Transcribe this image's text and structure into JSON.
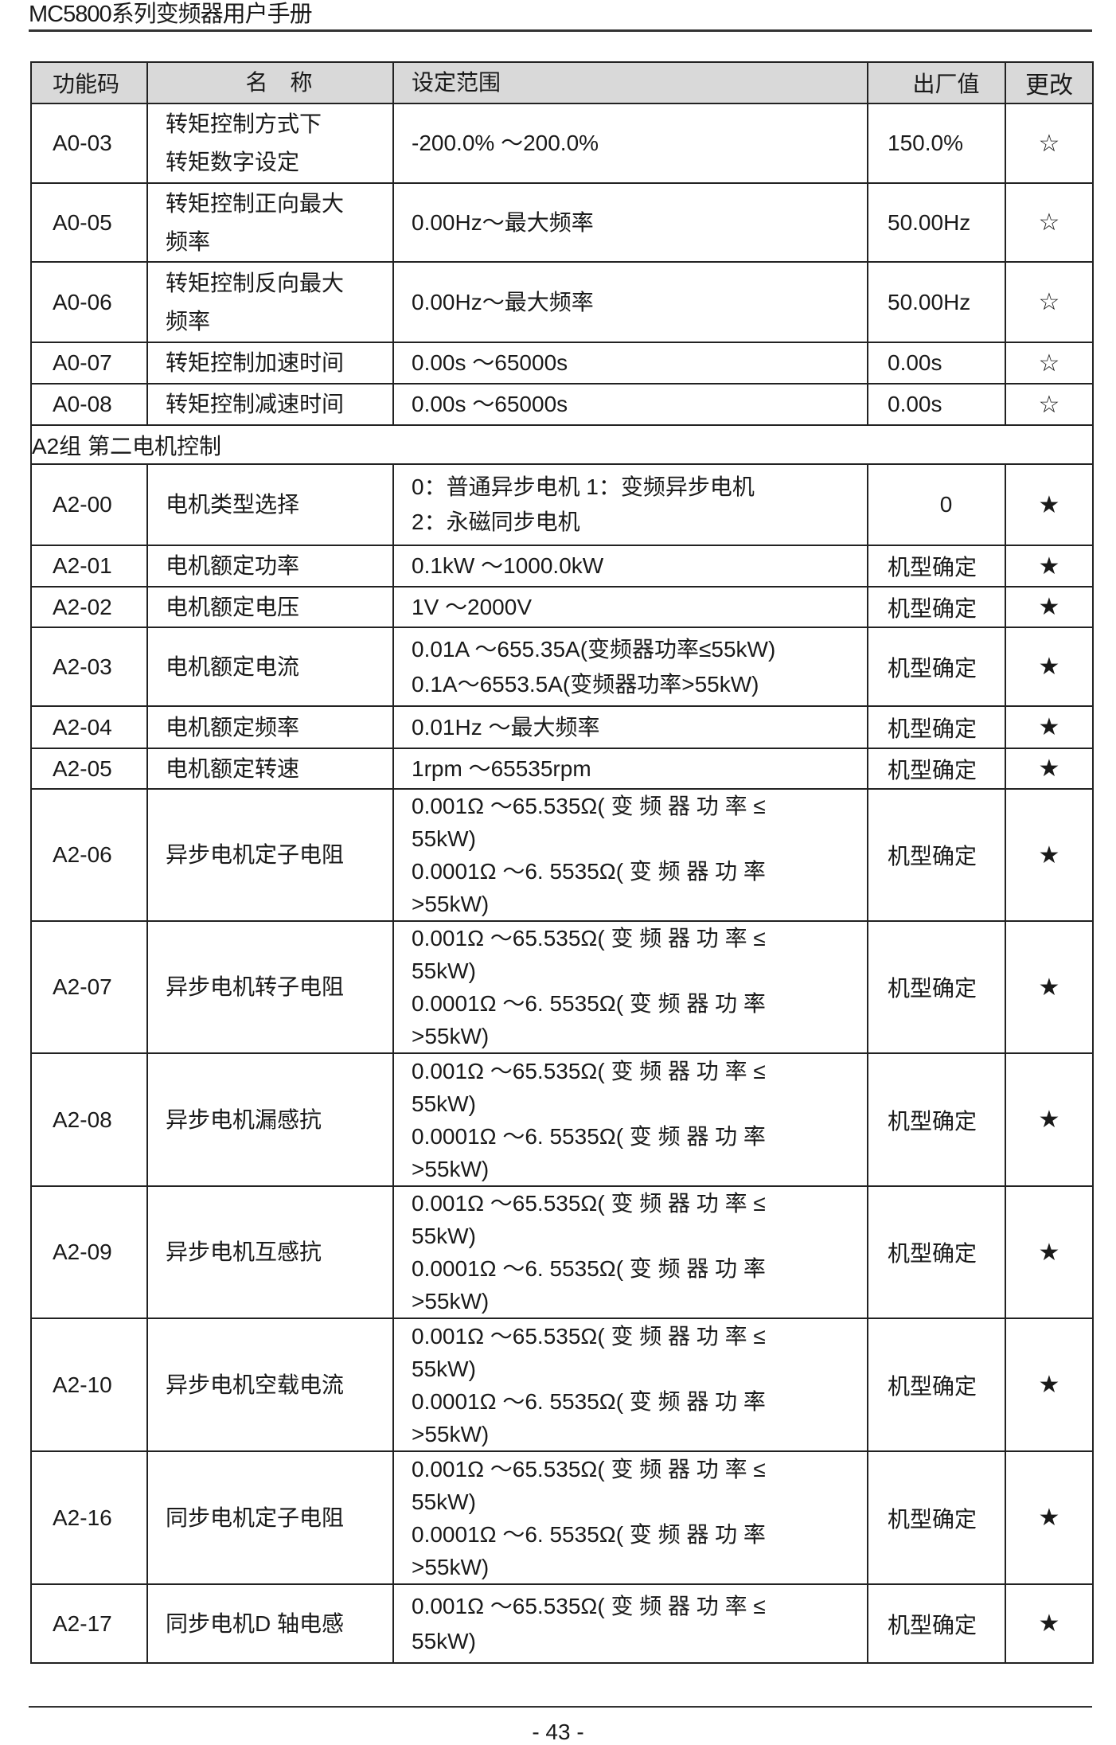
{
  "header": {
    "title": "MC5800系列变频器用户手册"
  },
  "table": {
    "columns": [
      "功能码",
      "名　称",
      "设定范围",
      "出厂值",
      "更改"
    ],
    "rows": [
      {
        "code": "A0-03",
        "name": [
          "转矩控制方式下",
          "转矩数字设定"
        ],
        "range": [
          "-200.0% ～200.0%"
        ],
        "default": "150.0%",
        "change": "☆"
      },
      {
        "code": "A0-05",
        "name": [
          "转矩控制正向最大",
          "频率"
        ],
        "range": [
          "0.00Hz～最大频率"
        ],
        "default": "50.00Hz",
        "change": "☆"
      },
      {
        "code": "A0-06",
        "name": [
          "转矩控制反向最大",
          "频率"
        ],
        "range": [
          "0.00Hz～最大频率"
        ],
        "default": "50.00Hz",
        "change": "☆"
      },
      {
        "code": "A0-07",
        "name": [
          "转矩控制加速时间"
        ],
        "range": [
          "0.00s ～65000s"
        ],
        "default": "0.00s",
        "change": "☆"
      },
      {
        "code": "A0-08",
        "name": [
          "转矩控制减速时间"
        ],
        "range": [
          "0.00s ～65000s"
        ],
        "default": "0.00s",
        "change": "☆"
      },
      {
        "group": "A2组 第二电机控制"
      },
      {
        "code": "A2-00",
        "name": [
          "电机类型选择"
        ],
        "range": [
          "0：普通异步电机 1：变频异步电机",
          "2：永磁同步电机"
        ],
        "default": "0",
        "change": "★"
      },
      {
        "code": "A2-01",
        "name": [
          "电机额定功率"
        ],
        "range": [
          "0.1kW ～1000.0kW"
        ],
        "default": "机型确定",
        "change": "★"
      },
      {
        "code": "A2-02",
        "name": [
          "电机额定电压"
        ],
        "range": [
          "1V ～2000V"
        ],
        "default": "机型确定",
        "change": "★"
      },
      {
        "code": "A2-03",
        "name": [
          "电机额定电流"
        ],
        "range": [
          "0.01A ～655.35A(变频器功率≤55kW)",
          "0.1A～6553.5A(变频器功率>55kW)"
        ],
        "default": "机型确定",
        "change": "★"
      },
      {
        "code": "A2-04",
        "name": [
          "电机额定频率"
        ],
        "range": [
          "0.01Hz ～最大频率"
        ],
        "default": "机型确定",
        "change": "★"
      },
      {
        "code": "A2-05",
        "name": [
          "电机额定转速"
        ],
        "range": [
          "1rpm ～65535rpm"
        ],
        "default": "机型确定",
        "change": "★"
      },
      {
        "code": "A2-06",
        "name": [
          "异步电机定子电阻"
        ],
        "range": [
          "0.001Ω ～65.535Ω( 变 频 器 功 率 ≤",
          "55kW)",
          "0.0001Ω ～6. 5535Ω( 变 频 器 功 率",
          ">55kW)"
        ],
        "default": "机型确定",
        "change": "★"
      },
      {
        "code": "A2-07",
        "name": [
          "异步电机转子电阻"
        ],
        "range": [
          "0.001Ω ～65.535Ω( 变 频 器 功 率 ≤",
          "55kW)",
          "0.0001Ω ～6. 5535Ω( 变 频 器 功 率",
          ">55kW)"
        ],
        "default": "机型确定",
        "change": "★"
      },
      {
        "code": "A2-08",
        "name": [
          "异步电机漏感抗"
        ],
        "range": [
          "0.001Ω ～65.535Ω( 变 频 器 功 率 ≤",
          "55kW)",
          "0.0001Ω ～6. 5535Ω( 变 频 器 功 率",
          ">55kW)"
        ],
        "default": "机型确定",
        "change": "★"
      },
      {
        "code": "A2-09",
        "name": [
          "异步电机互感抗"
        ],
        "range": [
          "0.001Ω ～65.535Ω( 变 频 器 功 率 ≤",
          "55kW)",
          "0.0001Ω ～6. 5535Ω( 变 频 器 功 率",
          ">55kW)"
        ],
        "default": "机型确定",
        "change": "★"
      },
      {
        "code": "A2-10",
        "name": [
          "异步电机空载电流"
        ],
        "range": [
          "0.001Ω ～65.535Ω( 变 频 器 功 率 ≤",
          "55kW)",
          "0.0001Ω ～6. 5535Ω( 变 频 器 功 率",
          ">55kW)"
        ],
        "default": "机型确定",
        "change": "★"
      },
      {
        "code": "A2-16",
        "name": [
          "同步电机定子电阻"
        ],
        "range": [
          "0.001Ω ～65.535Ω( 变 频 器 功 率 ≤",
          "55kW)",
          "0.0001Ω ～6. 5535Ω( 变 频 器 功 率",
          ">55kW)"
        ],
        "default": "机型确定",
        "change": "★"
      },
      {
        "code": "A2-17",
        "name": [
          "同步电机D 轴电感"
        ],
        "range": [
          "0.001Ω ～65.535Ω( 变 频 器 功 率 ≤",
          "55kW)"
        ],
        "default": "机型确定",
        "change": "★"
      }
    ]
  },
  "footer": {
    "page": "- 43 -"
  }
}
